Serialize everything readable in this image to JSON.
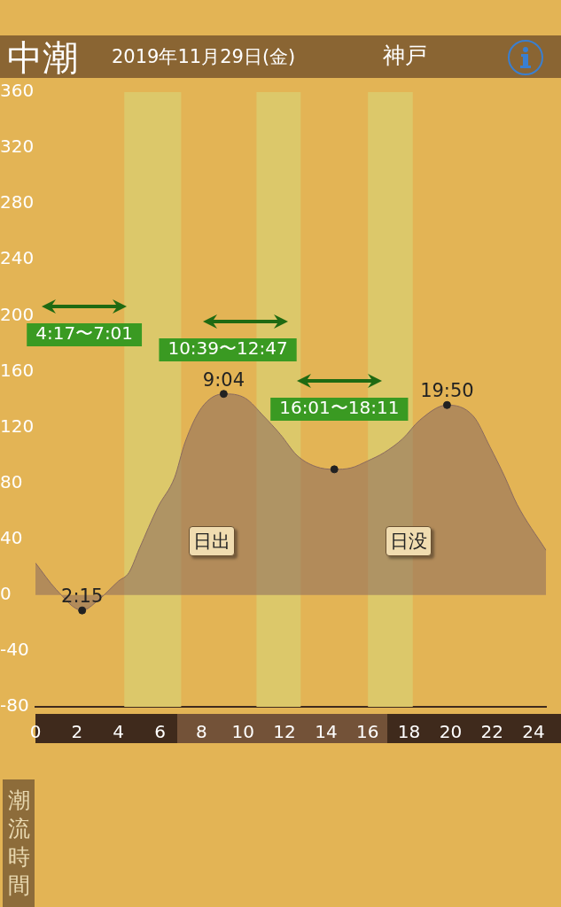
{
  "chart_data": {
    "type": "area",
    "title": "中潮",
    "subtitle": "2019年11月29日(金)",
    "annotations": [
      "神戸",
      "潮流時間",
      "日出",
      "日没",
      {
        "text": "2:15",
        "x": 2.25,
        "y": -11
      },
      {
        "text": "9:04",
        "x": 9.07,
        "y": 144
      },
      {
        "text": "19:50",
        "x": 19.83,
        "y": 136
      }
    ],
    "series": [
      {
        "color": "#8a6a5e",
        "x": [
          0,
          1,
          2.25,
          3,
          4,
          4.5,
          5,
          5.9,
          6.7,
          7.2,
          8,
          9.07,
          10.1,
          11,
          11.8,
          12.6,
          13.5,
          14.4,
          15.2,
          16,
          16.8,
          17.7,
          18.5,
          19.83,
          21.1,
          21.9,
          22.6,
          23.2,
          24.6
        ],
        "values": [
          23,
          4,
          -11,
          -4,
          10,
          16,
          33,
          63,
          84,
          109,
          134,
          144,
          141,
          128,
          115,
          100,
          92,
          90,
          91,
          96,
          102,
          112,
          125,
          136,
          128,
          106,
          85,
          65,
          32
        ]
      },
      {
        "type": "scatter",
        "color": "#222222",
        "x": [
          2.25,
          9.07,
          14.4,
          19.83
        ],
        "values": [
          -11,
          144,
          90,
          136
        ]
      }
    ],
    "xlim": [
      0,
      24.6
    ],
    "xticks": [
      0,
      2,
      4,
      6,
      8,
      10,
      12,
      14,
      16,
      18,
      20,
      22,
      24
    ],
    "ylim": [
      -80,
      360
    ],
    "yticks": [
      -80,
      -40,
      0,
      40,
      80,
      120,
      160,
      200,
      240,
      280,
      320,
      360
    ],
    "bands": [
      {
        "axis": "x",
        "from": 4.28,
        "to": 7.02,
        "label": "4:17〜7:01",
        "color": "#dcc86a"
      },
      {
        "axis": "x",
        "from": 10.65,
        "to": 12.78,
        "label": "10:39〜12:47",
        "color": "#dcc86a"
      },
      {
        "axis": "x",
        "from": 16.02,
        "to": 18.18,
        "label": "16:01〜18:11",
        "color": "#dcc86a"
      }
    ],
    "grid": false,
    "legend": false
  }
}
